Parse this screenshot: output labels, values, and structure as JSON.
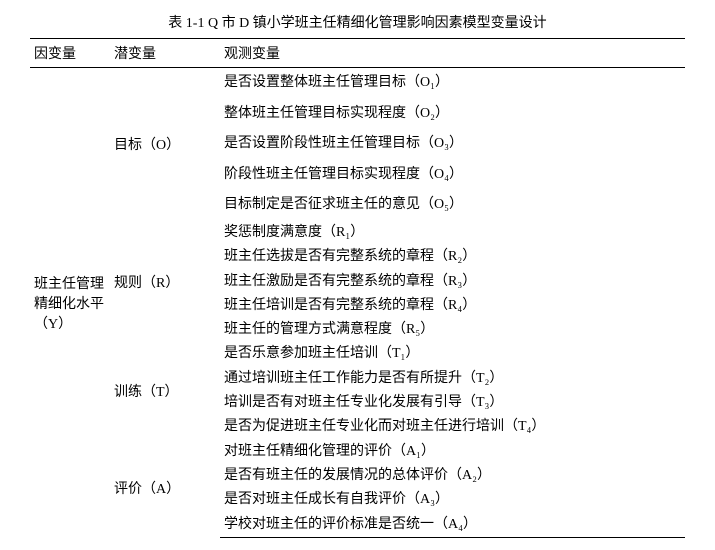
{
  "table": {
    "caption": "表 1-1 Q 市 D 镇小学班主任精细化管理影响因素模型变量设计",
    "headers": {
      "dep": "因变量",
      "lat": "潜变量",
      "obs": "观测变量"
    },
    "dep_label": "班主任管理精细化水平（Y）",
    "groups": [
      {
        "latent": "目标（O）",
        "spaced": true,
        "obs": [
          "是否设置整体班主任管理目标（O₁）",
          "整体班主任管理目标实现程度（O₂）",
          "是否设置阶段性班主任管理目标（O₃）",
          "阶段性班主任管理目标实现程度（O₄）",
          "目标制定是否征求班主任的意见（O₅）"
        ]
      },
      {
        "latent": "规则（R）",
        "spaced": false,
        "obs": [
          "奖惩制度满意度（R₁）",
          "班主任选拔是否有完整系统的章程（R₂）",
          "班主任激励是否有完整系统的章程（R₃）",
          "班主任培训是否有完整系统的章程（R₄）",
          "班主任的管理方式满意程度（R₅）"
        ]
      },
      {
        "latent": "训练（T）",
        "spaced": false,
        "obs": [
          "是否乐意参加班主任培训（T₁）",
          "通过培训班主任工作能力是否有所提升（T₂）",
          "培训是否有对班主任专业化发展有引导（T₃）",
          "是否为促进班主任专业化而对班主任进行培训（T₄）"
        ]
      },
      {
        "latent": "评价（A）",
        "spaced": false,
        "obs": [
          "对班主任精细化管理的评价（A₁）",
          "是否有班主任的发展情况的总体评价（A₂）",
          "是否对班主任成长有自我评价（A₃）",
          "学校对班主任的评价标准是否统一（A₄）"
        ]
      }
    ]
  }
}
